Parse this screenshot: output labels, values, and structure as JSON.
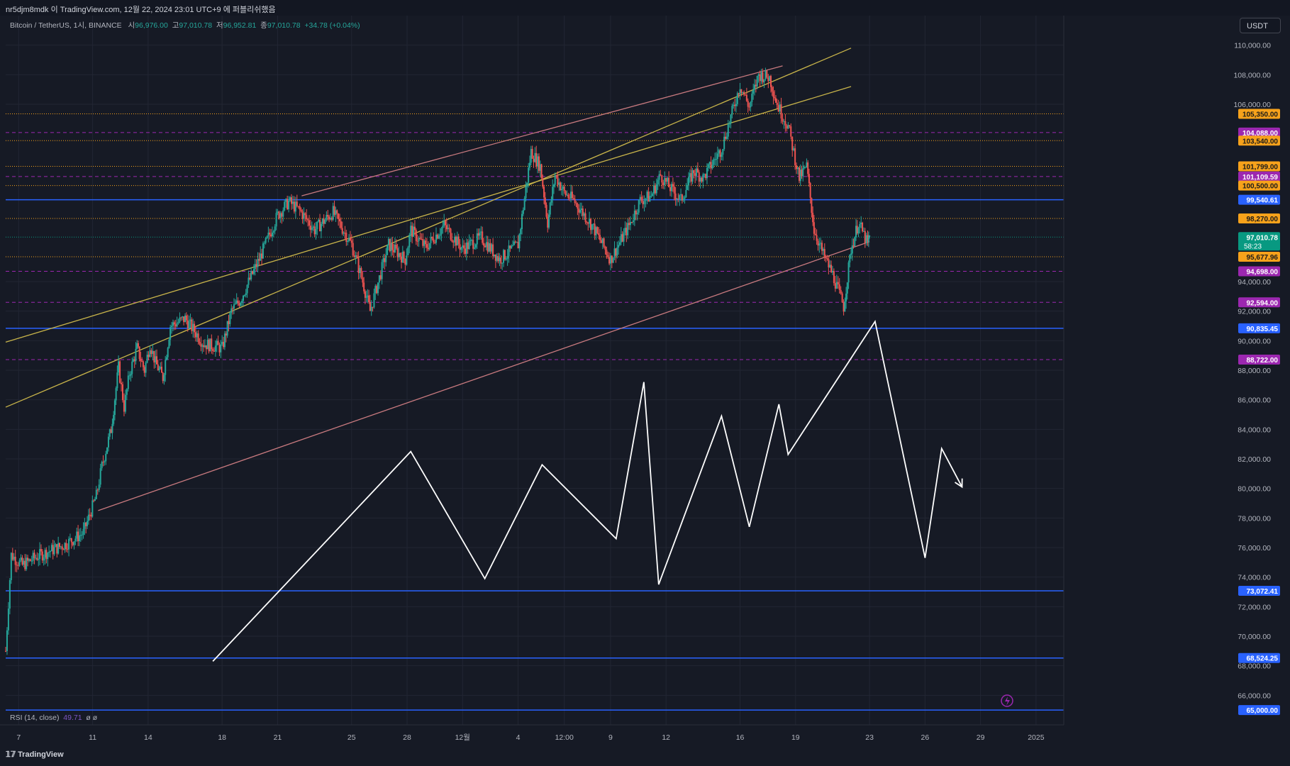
{
  "header": {
    "publish_info": "nr5djm8mdk 이 TradingView.com, 12월 22, 2024 23:01 UTC+9 에 퍼블리쉬했음"
  },
  "legend": {
    "symbol": "Bitcoin / TetherUS, 1시, BINANCE",
    "open_label": "시",
    "open": "96,976.00",
    "high_label": "고",
    "high": "97,010.78",
    "low_label": "저",
    "low": "96,952.81",
    "close_label": "종",
    "close": "97,010.78",
    "change": "+34.78 (+0.04%)"
  },
  "currency_button": "USDT",
  "rsi": {
    "label": "RSI (14, close)",
    "value": "49.71",
    "extra": "ø ø"
  },
  "brand": "TradingView",
  "colors": {
    "background": "#161a25",
    "grid": "#222633",
    "blue_level": "#2962ff",
    "orange_level": "#f7a21b",
    "purple_level": "#9c27b0",
    "yellow_trend": "#c8b44a",
    "pink_trend": "#c97a7f",
    "projection": "#ffffff",
    "up_candle": "#26a69a",
    "down_candle": "#ef5350",
    "current_price": "#089981"
  },
  "chart_data": {
    "type": "line",
    "y_axis": {
      "range": [
        64000,
        112000
      ],
      "ticks": [
        "110,000.00",
        "108,000.00",
        "106,000.00",
        "94,000.00",
        "92,000.00",
        "90,000.00",
        "88,000.00",
        "86,000.00",
        "84,000.00",
        "82,000.00",
        "80,000.00",
        "78,000.00",
        "76,000.00",
        "74,000.00",
        "72,000.00",
        "70,000.00",
        "68,000.00",
        "66,000.00"
      ]
    },
    "x_axis": {
      "labels": [
        {
          "label": "7",
          "day": 7
        },
        {
          "label": "11",
          "day": 11
        },
        {
          "label": "14",
          "day": 14
        },
        {
          "label": "18",
          "day": 18
        },
        {
          "label": "21",
          "day": 21
        },
        {
          "label": "25",
          "day": 25
        },
        {
          "label": "28",
          "day": 28
        },
        {
          "label": "12월",
          "day": 31
        },
        {
          "label": "4",
          "day": 34
        },
        {
          "label": "12:00",
          "day": 36.5
        },
        {
          "label": "9",
          "day": 39
        },
        {
          "label": "12",
          "day": 42
        },
        {
          "label": "16",
          "day": 46
        },
        {
          "label": "19",
          "day": 49
        },
        {
          "label": "23",
          "day": 53
        },
        {
          "label": "26",
          "day": 56
        },
        {
          "label": "29",
          "day": 59
        },
        {
          "label": "2025",
          "day": 62
        }
      ],
      "range": [
        6.3,
        63.5
      ]
    },
    "price_levels": [
      {
        "label": "105,350.00",
        "value": 105350,
        "style": "orange"
      },
      {
        "label": "104,088.00",
        "value": 104088,
        "style": "purple"
      },
      {
        "label": "103,540.00",
        "value": 103540,
        "style": "orange"
      },
      {
        "label": "101,799.00",
        "value": 101799,
        "style": "orange"
      },
      {
        "label": "101,109.59",
        "value": 101109.59,
        "style": "purple"
      },
      {
        "label": "100,500.00",
        "value": 100500,
        "style": "orange"
      },
      {
        "label": "99,540.61",
        "value": 99540.61,
        "style": "blue"
      },
      {
        "label": "98,270.00",
        "value": 98270,
        "style": "orange"
      },
      {
        "label": "95,677.96",
        "value": 95677.96,
        "style": "orange"
      },
      {
        "label": "94,698.00",
        "value": 94698,
        "style": "purple"
      },
      {
        "label": "92,594.00",
        "value": 92594,
        "style": "purple"
      },
      {
        "label": "90,835.45",
        "value": 90835.45,
        "style": "blue"
      },
      {
        "label": "88,722.00",
        "value": 88722,
        "style": "purple"
      },
      {
        "label": "73,072.41",
        "value": 73072.41,
        "style": "blue"
      },
      {
        "label": "68,524.25",
        "value": 68524.25,
        "style": "blue"
      },
      {
        "label": "65,000.00",
        "value": 65000,
        "style": "blue"
      }
    ],
    "current_price": {
      "label": "97,010.78",
      "value": 97010.78,
      "countdown": "58:23"
    },
    "price_series": {
      "name": "",
      "x": [
        6.3,
        6.6,
        7.2,
        8,
        9.5,
        10.5,
        11.2,
        11.5,
        12,
        12.4,
        12.7,
        13,
        13.4,
        13.8,
        14.1,
        14.4,
        14.8,
        15.2,
        16,
        17,
        18,
        18.5,
        19,
        20,
        21,
        21.6,
        22.2,
        23,
        24,
        25,
        25.6,
        26,
        27,
        27.9,
        28.2,
        29,
        30,
        31,
        32,
        33,
        34,
        34.7,
        35.2,
        35.6,
        36,
        36.5,
        37,
        38,
        39,
        40,
        40.6,
        41.2,
        41.7,
        42.3,
        42.8,
        43.5,
        44,
        45,
        46,
        46.5,
        47,
        47.6,
        48,
        48.6,
        49.2,
        49.6,
        50,
        50.5,
        51,
        51.6,
        52,
        52.4,
        52.9,
        53
      ],
      "y": [
        69000,
        75500,
        74800,
        75400,
        76200,
        77000,
        79500,
        81500,
        84000,
        88200,
        85500,
        87800,
        89500,
        88000,
        89800,
        88500,
        87500,
        91000,
        91500,
        89800,
        89500,
        92000,
        92800,
        95500,
        98500,
        99400,
        98800,
        97500,
        98700,
        96500,
        94000,
        92000,
        96500,
        95500,
        97500,
        96300,
        97800,
        96200,
        97000,
        95500,
        96500,
        102800,
        101800,
        98000,
        101200,
        100000,
        99500,
        97800,
        95500,
        97800,
        99500,
        99800,
        101200,
        100200,
        99500,
        101500,
        101000,
        103000,
        107300,
        105800,
        108000,
        107800,
        106000,
        104500,
        101000,
        101800,
        97500,
        95800,
        94500,
        92300,
        96200,
        98000,
        96500,
        97010.78
      ]
    },
    "annotations": {
      "yellow_channel": [
        {
          "from": [
            6.3,
            89900
          ],
          "to": [
            52,
            107200
          ]
        },
        {
          "from": [
            6.3,
            85500
          ],
          "to": [
            52,
            109800
          ]
        }
      ],
      "pink_channel": [
        {
          "from": [
            11.3,
            78500
          ],
          "to": [
            53,
            96700
          ]
        },
        {
          "from": [
            22.3,
            99800
          ],
          "to": [
            48.3,
            108600
          ]
        }
      ],
      "projection_path": [
        [
          17.5,
          68300
        ],
        [
          28.2,
          82500
        ],
        [
          32.2,
          73900
        ],
        [
          35.3,
          81600
        ],
        [
          39.3,
          76600
        ],
        [
          40.8,
          87200
        ],
        [
          41.6,
          73500
        ],
        [
          45,
          84900
        ],
        [
          46.5,
          77400
        ],
        [
          48.1,
          85700
        ],
        [
          48.6,
          82300
        ],
        [
          53.3,
          91300
        ],
        [
          56,
          75300
        ],
        [
          56.9,
          82700
        ],
        [
          58,
          80100
        ]
      ]
    }
  }
}
